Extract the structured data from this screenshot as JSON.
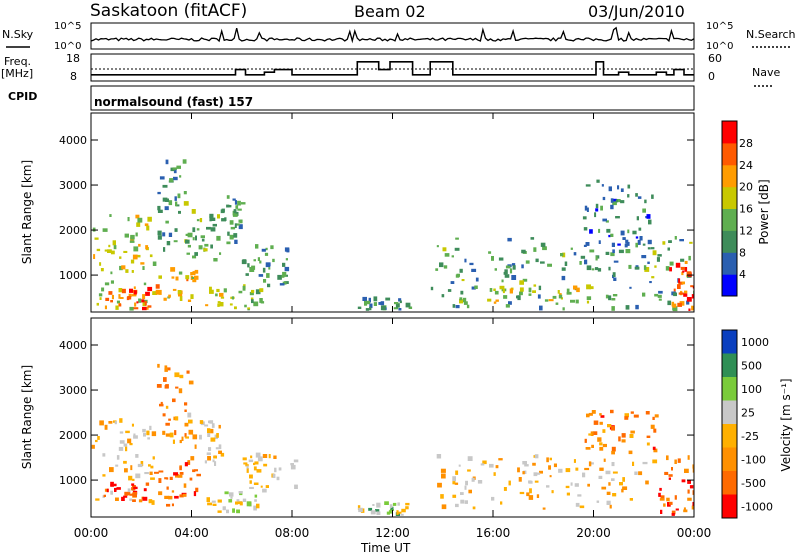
{
  "header": {
    "station": "Saskatoon (fitACF)",
    "beam": "Beam 02",
    "date": "03/Jun/2010"
  },
  "left_labels": {
    "nsky": "N.Sky",
    "freq_line1": "Freq.",
    "freq_line2": "[MHz]",
    "cpid": "CPID"
  },
  "right_labels": {
    "nsearch": "N.Search",
    "nave": "Nave"
  },
  "cpid_value": "normalsound (fast) 157",
  "colors": {
    "power_scale": [
      "#0000ff",
      "#2a5fb0",
      "#3e8c5a",
      "#5fae50",
      "#c8c800",
      "#ff9c00",
      "#ff5a00",
      "#ff0000"
    ],
    "velocity_scale": [
      "#ff0000",
      "#ff6a00",
      "#ff9000",
      "#ffb000",
      "#c8c8c8",
      "#7acb3a",
      "#2f8f55",
      "#0a3fbf"
    ]
  },
  "chart_data": [
    {
      "type": "line",
      "panel": "noise",
      "left_ticks": [
        "10^5",
        "10^0"
      ],
      "right_ticks": [
        "10^5",
        "10^0"
      ]
    },
    {
      "type": "line",
      "panel": "frequency-nave",
      "left_ticks": [
        "18",
        "8"
      ],
      "right_ticks": [
        "60",
        "0"
      ],
      "freq_series": [
        [
          0,
          10
        ],
        [
          5.75,
          10
        ],
        [
          5.75,
          12
        ],
        [
          6.15,
          12
        ],
        [
          6.15,
          10
        ],
        [
          6.9,
          10
        ],
        [
          6.9,
          11
        ],
        [
          7.3,
          11
        ],
        [
          7.3,
          12
        ],
        [
          8.0,
          12
        ],
        [
          8.0,
          10
        ],
        [
          10.6,
          10
        ],
        [
          10.6,
          15
        ],
        [
          11.45,
          15
        ],
        [
          11.45,
          12
        ],
        [
          11.9,
          12
        ],
        [
          11.9,
          15
        ],
        [
          12.8,
          15
        ],
        [
          12.8,
          10
        ],
        [
          13.5,
          10
        ],
        [
          13.5,
          15
        ],
        [
          14.4,
          15
        ],
        [
          14.4,
          10
        ],
        [
          20.1,
          10
        ],
        [
          20.1,
          15
        ],
        [
          20.4,
          15
        ],
        [
          20.4,
          10
        ],
        [
          21.0,
          10
        ],
        [
          21.0,
          11
        ],
        [
          21.4,
          11
        ],
        [
          21.4,
          10
        ],
        [
          22.5,
          10
        ],
        [
          22.5,
          11
        ],
        [
          22.9,
          11
        ],
        [
          22.9,
          10
        ],
        [
          23.2,
          10
        ],
        [
          23.2,
          12
        ],
        [
          23.6,
          12
        ],
        [
          23.6,
          10
        ],
        [
          24,
          10
        ]
      ]
    },
    {
      "type": "heatmap",
      "panel": "power",
      "ylabel": "Slant Range [km]",
      "y_ticks": [
        1000,
        2000,
        3000,
        4000
      ],
      "ylim": [
        180,
        4600
      ],
      "colorbar_title": "Power [dB]",
      "colorbar_ticks": [
        "4",
        "8",
        "12",
        "16",
        "20",
        "24",
        "28"
      ],
      "regions": [
        {
          "t0": 0.0,
          "t1": 2.5,
          "r0": 200,
          "r1": 2300,
          "v": 0.55
        },
        {
          "t0": 0.5,
          "t1": 2.3,
          "r0": 200,
          "r1": 700,
          "v": 0.8
        },
        {
          "t0": 2.4,
          "t1": 4.2,
          "r0": 400,
          "r1": 1100,
          "v": 0.6
        },
        {
          "t0": 2.6,
          "t1": 3.9,
          "r0": 1400,
          "r1": 3500,
          "v": 0.35
        },
        {
          "t0": 4.0,
          "t1": 5.2,
          "r0": 1300,
          "r1": 2400,
          "v": 0.45
        },
        {
          "t0": 4.3,
          "t1": 6.8,
          "r0": 200,
          "r1": 700,
          "v": 0.5
        },
        {
          "t0": 5.3,
          "t1": 6.0,
          "r0": 1600,
          "r1": 2700,
          "v": 0.3
        },
        {
          "t0": 6.0,
          "t1": 8.1,
          "r0": 700,
          "r1": 1600,
          "v": 0.3
        },
        {
          "t0": 10.6,
          "t1": 12.8,
          "r0": 200,
          "r1": 450,
          "v": 0.3
        },
        {
          "t0": 13.5,
          "t1": 24.0,
          "r0": 200,
          "r1": 1800,
          "v": 0.35
        },
        {
          "t0": 14.5,
          "t1": 20.0,
          "r0": 350,
          "r1": 700,
          "v": 0.55
        },
        {
          "t0": 19.5,
          "t1": 22.5,
          "r0": 1500,
          "r1": 3100,
          "v": 0.25
        },
        {
          "t0": 23.0,
          "t1": 24.0,
          "r0": 200,
          "r1": 1300,
          "v": 0.85
        }
      ]
    },
    {
      "type": "heatmap",
      "panel": "velocity",
      "ylabel": "Slant Range [km]",
      "xlabel": "Time UT",
      "x_ticks": [
        "00:00",
        "04:00",
        "08:00",
        "12:00",
        "16:00",
        "20:00",
        "00:00"
      ],
      "y_ticks": [
        1000,
        2000,
        3000,
        4000
      ],
      "ylim": [
        180,
        4600
      ],
      "colorbar_title": "Velocity [m s⁻¹]",
      "colorbar_ticks": [
        "1000",
        "500",
        "100",
        "25",
        "-25",
        "-100",
        "-500",
        "-1000"
      ],
      "regions": [
        {
          "t0": 0.0,
          "t1": 2.5,
          "r0": 400,
          "r1": 2300,
          "v": 0.45
        },
        {
          "t0": 0.5,
          "t1": 2.2,
          "r0": 500,
          "r1": 900,
          "v": 0.15
        },
        {
          "t0": 2.5,
          "t1": 4.2,
          "r0": 400,
          "r1": 1400,
          "v": 0.2
        },
        {
          "t0": 2.6,
          "t1": 3.9,
          "r0": 1800,
          "r1": 3500,
          "v": 0.3
        },
        {
          "t0": 3.8,
          "t1": 5.2,
          "r0": 1300,
          "r1": 2400,
          "v": 0.45
        },
        {
          "t0": 4.5,
          "t1": 6.8,
          "r0": 250,
          "r1": 700,
          "v": 0.55
        },
        {
          "t0": 6.0,
          "t1": 8.1,
          "r0": 700,
          "r1": 1500,
          "v": 0.45
        },
        {
          "t0": 10.6,
          "t1": 12.8,
          "r0": 200,
          "r1": 450,
          "v": 0.6
        },
        {
          "t0": 13.5,
          "t1": 22.5,
          "r0": 300,
          "r1": 1500,
          "v": 0.45
        },
        {
          "t0": 19.5,
          "t1": 22.5,
          "r0": 1500,
          "r1": 2500,
          "v": 0.25
        },
        {
          "t0": 22.5,
          "t1": 24.0,
          "r0": 200,
          "r1": 1500,
          "v": 0.2
        }
      ]
    }
  ]
}
